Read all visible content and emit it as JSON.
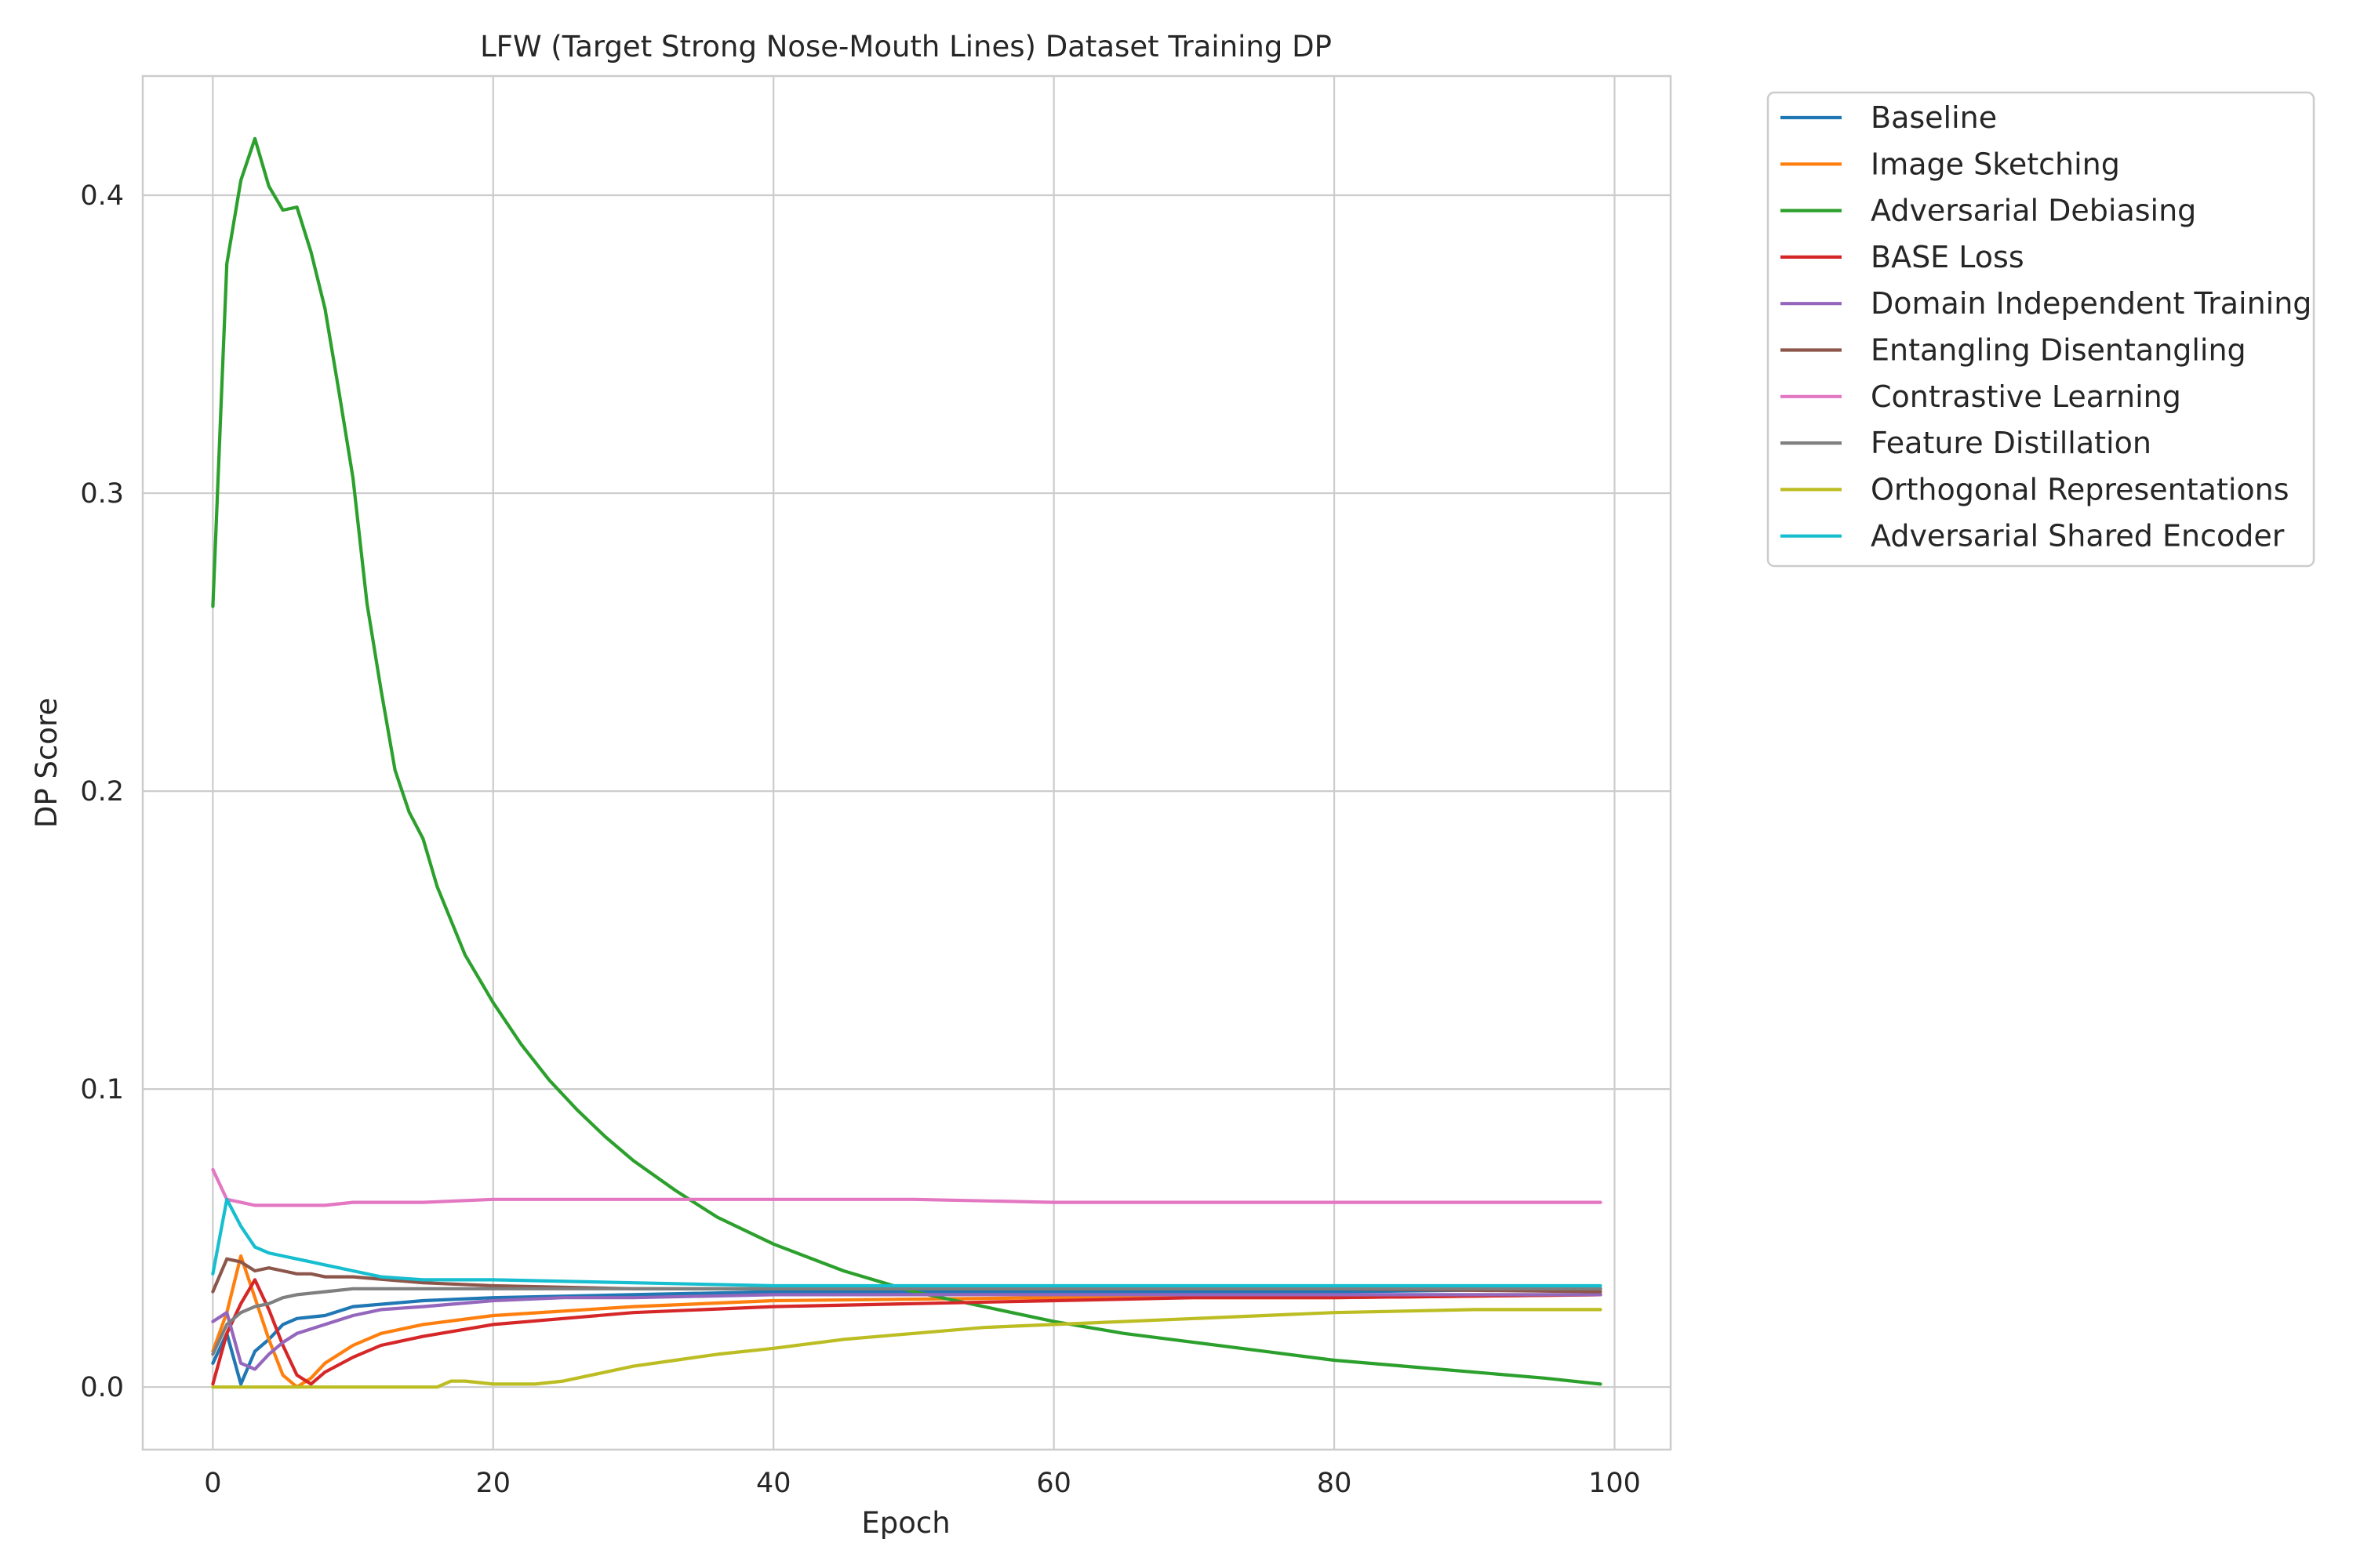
{
  "chart_data": {
    "type": "line",
    "title": "LFW (Target Strong Nose-Mouth Lines) Dataset Training DP",
    "xlabel": "Epoch",
    "ylabel": "DP Score",
    "xlim": [
      -5,
      104
    ],
    "ylim": [
      -0.021,
      0.44
    ],
    "xticks": [
      0,
      20,
      40,
      60,
      80,
      100
    ],
    "yticks": [
      0.0,
      0.1,
      0.2,
      0.3,
      0.4
    ],
    "grid": true,
    "legend_position": "outside-top-right",
    "series": [
      {
        "name": "Baseline",
        "color": "#1f77b4",
        "x": [
          0,
          1,
          2,
          3,
          4,
          5,
          6,
          8,
          10,
          15,
          20,
          30,
          40,
          60,
          80,
          99
        ],
        "y": [
          0.008,
          0.018,
          0.001,
          0.012,
          0.016,
          0.021,
          0.023,
          0.024,
          0.027,
          0.029,
          0.03,
          0.031,
          0.032,
          0.032,
          0.032,
          0.033
        ]
      },
      {
        "name": "Image Sketching",
        "color": "#ff7f0e",
        "x": [
          0,
          1,
          2,
          3,
          4,
          5,
          6,
          7,
          8,
          10,
          12,
          15,
          20,
          30,
          40,
          60,
          80,
          99
        ],
        "y": [
          0.012,
          0.025,
          0.044,
          0.03,
          0.016,
          0.004,
          0.0,
          0.003,
          0.008,
          0.014,
          0.018,
          0.021,
          0.024,
          0.027,
          0.029,
          0.03,
          0.03,
          0.031
        ]
      },
      {
        "name": "Adversarial Debiasing",
        "color": "#2ca02c",
        "x": [
          0,
          1,
          2,
          3,
          4,
          5,
          6,
          7,
          8,
          9,
          10,
          11,
          12,
          13,
          14,
          15,
          16,
          18,
          20,
          22,
          24,
          26,
          28,
          30,
          33,
          36,
          40,
          45,
          50,
          55,
          60,
          65,
          70,
          75,
          80,
          85,
          90,
          95,
          99
        ],
        "y": [
          0.262,
          0.377,
          0.405,
          0.419,
          0.403,
          0.395,
          0.396,
          0.381,
          0.362,
          0.334,
          0.305,
          0.263,
          0.234,
          0.207,
          0.193,
          0.184,
          0.168,
          0.145,
          0.129,
          0.115,
          0.103,
          0.093,
          0.084,
          0.076,
          0.066,
          0.057,
          0.048,
          0.039,
          0.032,
          0.027,
          0.022,
          0.018,
          0.015,
          0.012,
          0.009,
          0.007,
          0.005,
          0.003,
          0.001
        ]
      },
      {
        "name": "BASE Loss",
        "color": "#d62728",
        "x": [
          0,
          1,
          2,
          3,
          4,
          5,
          6,
          7,
          8,
          10,
          12,
          15,
          20,
          25,
          30,
          40,
          50,
          60,
          70,
          80,
          99
        ],
        "y": [
          0.001,
          0.018,
          0.028,
          0.036,
          0.026,
          0.014,
          0.004,
          0.001,
          0.005,
          0.01,
          0.014,
          0.017,
          0.021,
          0.023,
          0.025,
          0.027,
          0.028,
          0.029,
          0.03,
          0.03,
          0.031
        ]
      },
      {
        "name": "Domain Independent Training",
        "color": "#9467bd",
        "x": [
          0,
          1,
          2,
          3,
          4,
          5,
          6,
          8,
          10,
          12,
          15,
          20,
          25,
          30,
          40,
          60,
          80,
          99
        ],
        "y": [
          0.022,
          0.025,
          0.008,
          0.006,
          0.011,
          0.015,
          0.018,
          0.021,
          0.024,
          0.026,
          0.027,
          0.029,
          0.03,
          0.03,
          0.031,
          0.031,
          0.031,
          0.031
        ]
      },
      {
        "name": "Entangling Disentangling",
        "color": "#8c564b",
        "x": [
          0,
          1,
          2,
          3,
          4,
          5,
          6,
          7,
          8,
          10,
          15,
          20,
          30,
          40,
          60,
          80,
          99
        ],
        "y": [
          0.032,
          0.043,
          0.042,
          0.039,
          0.04,
          0.039,
          0.038,
          0.038,
          0.037,
          0.037,
          0.035,
          0.034,
          0.033,
          0.033,
          0.033,
          0.033,
          0.032
        ]
      },
      {
        "name": "Contrastive Learning",
        "color": "#e377c2",
        "x": [
          0,
          1,
          2,
          3,
          4,
          5,
          8,
          10,
          15,
          20,
          25,
          30,
          35,
          40,
          45,
          50,
          60,
          70,
          80,
          90,
          99
        ],
        "y": [
          0.073,
          0.063,
          0.062,
          0.061,
          0.061,
          0.061,
          0.061,
          0.062,
          0.062,
          0.063,
          0.063,
          0.063,
          0.063,
          0.063,
          0.063,
          0.063,
          0.062,
          0.062,
          0.062,
          0.062,
          0.062
        ]
      },
      {
        "name": "Feature Distillation",
        "color": "#7f7f7f",
        "x": [
          0,
          1,
          2,
          3,
          4,
          5,
          6,
          8,
          10,
          15,
          20,
          30,
          40,
          60,
          80,
          99
        ],
        "y": [
          0.011,
          0.021,
          0.025,
          0.027,
          0.028,
          0.03,
          0.031,
          0.032,
          0.033,
          0.033,
          0.033,
          0.033,
          0.033,
          0.033,
          0.033,
          0.033
        ]
      },
      {
        "name": "Orthogonal Representations",
        "color": "#bcbd22",
        "x": [
          0,
          5,
          10,
          14,
          16,
          17,
          18,
          20,
          23,
          25,
          28,
          30,
          33,
          36,
          40,
          45,
          50,
          55,
          60,
          70,
          80,
          90,
          99
        ],
        "y": [
          0.0,
          0.0,
          0.0,
          0.0,
          0.0,
          0.002,
          0.002,
          0.001,
          0.001,
          0.002,
          0.005,
          0.007,
          0.009,
          0.011,
          0.013,
          0.016,
          0.018,
          0.02,
          0.021,
          0.023,
          0.025,
          0.026,
          0.026
        ]
      },
      {
        "name": "Adversarial Shared Encoder",
        "color": "#17becf",
        "x": [
          0,
          1,
          2,
          3,
          4,
          5,
          6,
          7,
          8,
          9,
          10,
          12,
          15,
          20,
          30,
          40,
          60,
          80,
          99
        ],
        "y": [
          0.038,
          0.063,
          0.054,
          0.047,
          0.045,
          0.044,
          0.043,
          0.042,
          0.041,
          0.04,
          0.039,
          0.037,
          0.036,
          0.036,
          0.035,
          0.034,
          0.034,
          0.034,
          0.034
        ]
      }
    ]
  }
}
